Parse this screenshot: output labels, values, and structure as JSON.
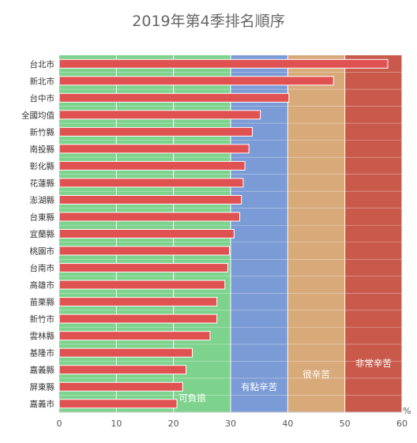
{
  "chart_data": {
    "type": "bar",
    "orientation": "horizontal",
    "title": "2019年第4季排名順序",
    "unit": "%",
    "xlim": [
      0,
      60
    ],
    "xticks": [
      0,
      10,
      20,
      30,
      40,
      50,
      60
    ],
    "grid": true,
    "categories": [
      "台北市",
      "新北市",
      "台中市",
      "全國均值",
      "新竹縣",
      "南投縣",
      "彰化縣",
      "花蓮縣",
      "澎湖縣",
      "台東縣",
      "宜蘭縣",
      "桃園市",
      "台南市",
      "高雄市",
      "苗栗縣",
      "新竹市",
      "雲林縣",
      "基隆市",
      "嘉義縣",
      "屏東縣",
      "嘉義市"
    ],
    "values": [
      57.5,
      48,
      40.2,
      35.2,
      33.8,
      33.2,
      32.5,
      32.2,
      31.9,
      31.6,
      30.6,
      29.8,
      29.5,
      29.0,
      27.6,
      27.6,
      26.4,
      23.3,
      22.2,
      21.6,
      20.6
    ],
    "bar_color": "#e05252",
    "bands": [
      {
        "label": "可負擔",
        "from": 0,
        "to": 30,
        "color": "#7dd38d"
      },
      {
        "label": "有點辛苦",
        "from": 30,
        "to": 40,
        "color": "#7b9bd6"
      },
      {
        "label": "很辛苦",
        "from": 40,
        "to": 50,
        "color": "#d8aa7a"
      },
      {
        "label": "非常辛苦",
        "from": 50,
        "to": 60,
        "color": "#c95a4b"
      }
    ]
  }
}
